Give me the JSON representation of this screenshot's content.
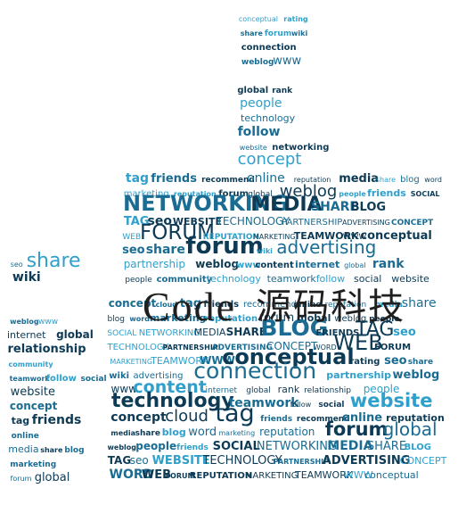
{
  "overlay": {
    "brand_latin": "Code",
    "brand_cjk": "源码科技"
  },
  "palette": {
    "dark": "#0d3a55",
    "mid": "#1a6c93",
    "light": "#2fa0cc",
    "ink": "#1f1f1f"
  },
  "icon": "thumbs-up-word-cloud",
  "words": [
    "conceptual",
    "rating",
    "seo",
    "share",
    "forum",
    "wiki",
    "advertising",
    "connection",
    "partnership",
    "weblog",
    "www",
    "content",
    "internet",
    "global",
    "rank",
    "relationship",
    "people",
    "community",
    "technology",
    "teamwork",
    "follow",
    "social",
    "website",
    "networking",
    "concept",
    "cloud",
    "tag",
    "friends",
    "recommend",
    "online",
    "reputation",
    "media",
    "share",
    "blog",
    "word",
    "marketing",
    "reputation",
    "forum",
    "global",
    "weblog",
    "people",
    "friends",
    "SOCIAL",
    "NETWORKING",
    "MEDIA",
    "SHARE",
    "BLOG",
    "FRIENDS",
    "TAG",
    "seo",
    "WEBSITE",
    "TECHNOLOGY",
    "PARTNERSHIP",
    "ADVERTISING",
    "CONCEPT",
    "WORD",
    "WEB",
    "FORUM",
    "REPUTATION",
    "MARKETING",
    "TEAMWORK",
    "WWW"
  ]
}
